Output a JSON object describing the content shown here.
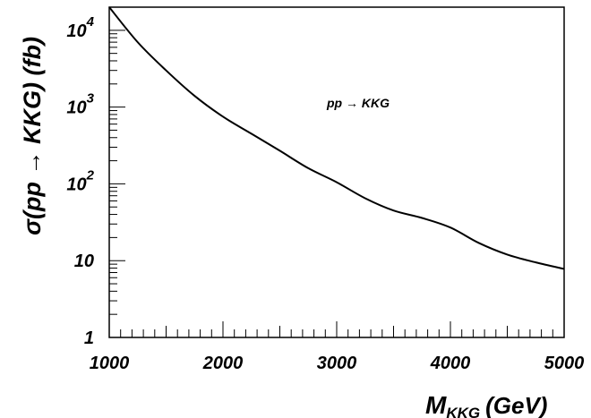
{
  "chart_data": {
    "type": "line",
    "title": "",
    "xlabel": {
      "main": "M",
      "sub": "KKG",
      "rest": "(GeV)"
    },
    "ylabel": "σ(pp → KKG) (fb)",
    "x_range": [
      1000,
      5000
    ],
    "y_range": [
      1,
      20000
    ],
    "y_scale": "log",
    "grid": false,
    "legend": "none",
    "annotation": "pp → KKG",
    "x_ticks": [
      {
        "value": 1000,
        "label": "1000"
      },
      {
        "value": 2000,
        "label": "2000"
      },
      {
        "value": 3000,
        "label": "3000"
      },
      {
        "value": 4000,
        "label": "4000"
      },
      {
        "value": 5000,
        "label": "5000"
      }
    ],
    "y_ticks": [
      {
        "value": 1,
        "base": "1",
        "exp": ""
      },
      {
        "value": 10,
        "base": "10",
        "exp": ""
      },
      {
        "value": 100,
        "base": "10",
        "exp": "2"
      },
      {
        "value": 1000,
        "base": "10",
        "exp": "3"
      },
      {
        "value": 10000,
        "base": "10",
        "exp": "4"
      }
    ],
    "series": [
      {
        "x": [
          1000,
          1250,
          1500,
          1750,
          2000,
          2250,
          2500,
          2750,
          3000,
          3250,
          3500,
          3750,
          4000,
          4250,
          4500,
          4750,
          5000
        ],
        "y": [
          20000,
          7000,
          3000,
          1400,
          750,
          450,
          270,
          160,
          105,
          65,
          45,
          36,
          27,
          17,
          12,
          9.5,
          7.8
        ]
      }
    ]
  }
}
